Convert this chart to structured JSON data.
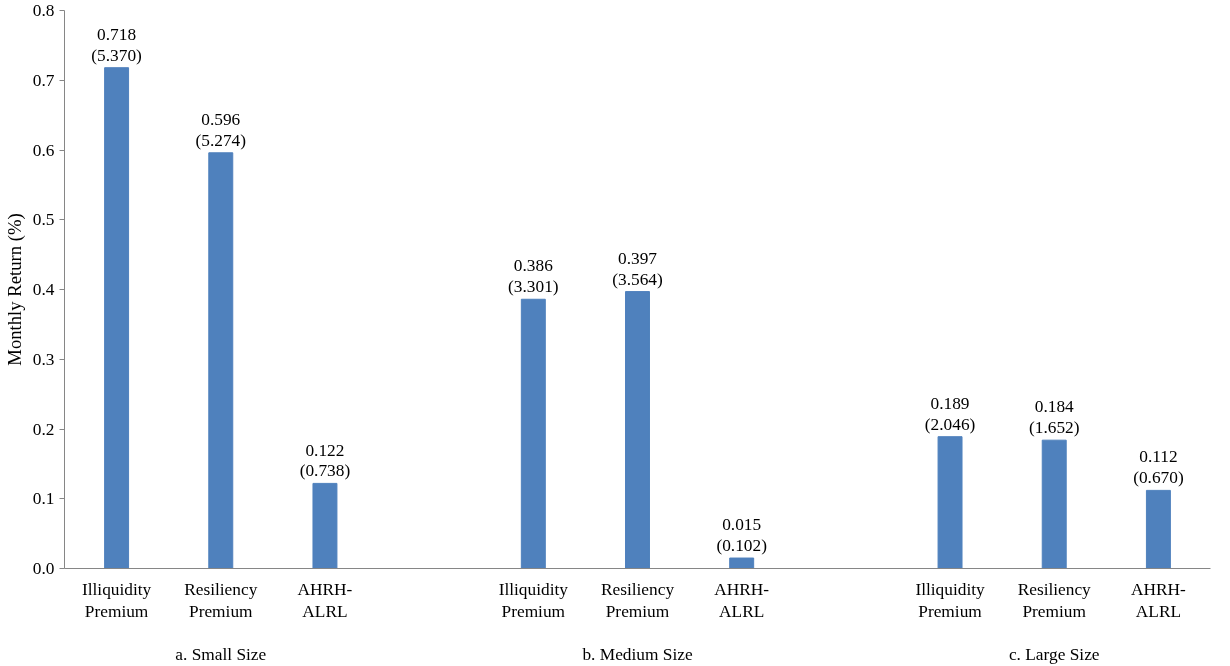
{
  "chart_data": {
    "type": "bar",
    "ylabel": "Monthly Return (%)",
    "categories": [
      "Illiquidity\nPremium",
      "Resiliency\nPremium",
      "AHRH-\nALRL",
      null,
      "Illiquidity\nPremium",
      "Resiliency\nPremium",
      "AHRH-\nALRL",
      null,
      "Illiquidity\nPremium",
      "Resiliency\nPremium",
      "AHRH-\nALRL"
    ],
    "values": [
      0.718,
      0.596,
      0.122,
      null,
      0.386,
      0.397,
      0.015,
      null,
      0.189,
      0.184,
      0.112
    ],
    "value_labels": [
      "0.718\n(5.370)",
      "0.596\n(5.274)",
      "0.122\n(0.738)",
      null,
      "0.386\n(3.301)",
      "0.397\n(3.564)",
      "0.015\n(0.102)",
      null,
      "0.189\n(2.046)",
      "0.184\n(1.652)",
      "0.112\n(0.670)"
    ],
    "color": "#4f81bd",
    "ylim": [
      0,
      0.8
    ],
    "yticks": [
      {
        "value": 0,
        "label": "0.0"
      },
      0.1,
      0.2,
      0.3,
      0.4,
      0.5,
      0.6,
      0.7,
      0.8
    ],
    "annotations": [
      "a. Small Size",
      "b. Medium Size",
      "c. Large Size"
    ],
    "grid": false
  }
}
